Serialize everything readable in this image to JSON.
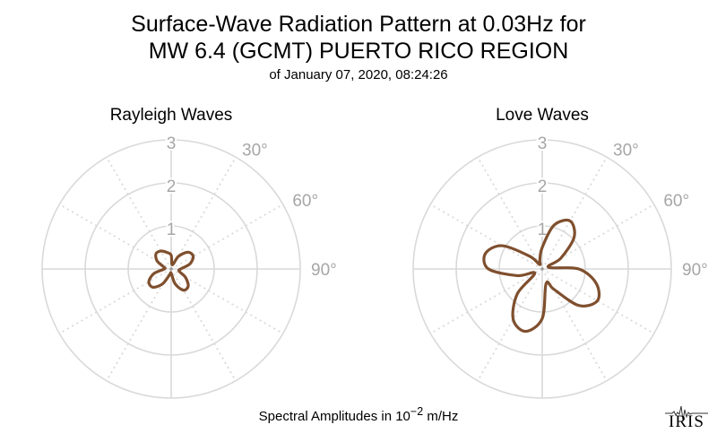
{
  "title_line1": "Surface-Wave Radiation Pattern at 0.03Hz for",
  "title_line2": "MW 6.4 (GCMT) PUERTO RICO REGION",
  "subtitle": "of January 07, 2020, 08:24:26",
  "footer": {
    "prefix": "Spectral Amplitudes in 10",
    "exponent": "−2",
    "suffix": " m/Hz"
  },
  "logo_text": "IRIS",
  "colors": {
    "pattern": "#7f4f2e",
    "grid": "#d9d9d9",
    "label": "#a6a6a6"
  },
  "chart_data": [
    {
      "type": "polar-line",
      "title": "Rayleigh Waves",
      "r_max": 3,
      "radial_ticks": [
        1,
        2,
        3
      ],
      "angle_tick_labels": [
        "30°",
        "60°",
        "90°"
      ],
      "azimuth_deg": [
        0,
        15,
        30,
        45,
        60,
        75,
        90,
        105,
        120,
        135,
        150,
        165,
        180,
        195,
        210,
        225,
        240,
        255,
        270,
        285,
        300,
        315,
        330,
        345
      ],
      "amplitude": [
        0.32,
        0.1,
        0.34,
        0.55,
        0.59,
        0.45,
        0.22,
        0.19,
        0.38,
        0.56,
        0.57,
        0.36,
        0.1,
        0.14,
        0.4,
        0.6,
        0.6,
        0.42,
        0.16,
        0.18,
        0.38,
        0.5,
        0.48,
        0.4
      ]
    },
    {
      "type": "polar-line",
      "title": "Love Waves",
      "r_max": 3,
      "radial_ticks": [
        1,
        2,
        3
      ],
      "angle_tick_labels": [
        "30°",
        "60°",
        "90°"
      ],
      "azimuth_deg": [
        0,
        15,
        30,
        45,
        60,
        75,
        90,
        105,
        120,
        135,
        150,
        165,
        180,
        195,
        210,
        225,
        240,
        255,
        270,
        285,
        300,
        315,
        330,
        345
      ],
      "amplitude": [
        0.5,
        1.05,
        1.29,
        1.05,
        0.5,
        0.15,
        0.85,
        1.3,
        1.48,
        1.2,
        0.55,
        0.35,
        1.15,
        1.5,
        1.35,
        0.82,
        0.2,
        0.6,
        1.25,
        1.37,
        1.08,
        0.42,
        0.12,
        0.22
      ]
    }
  ]
}
